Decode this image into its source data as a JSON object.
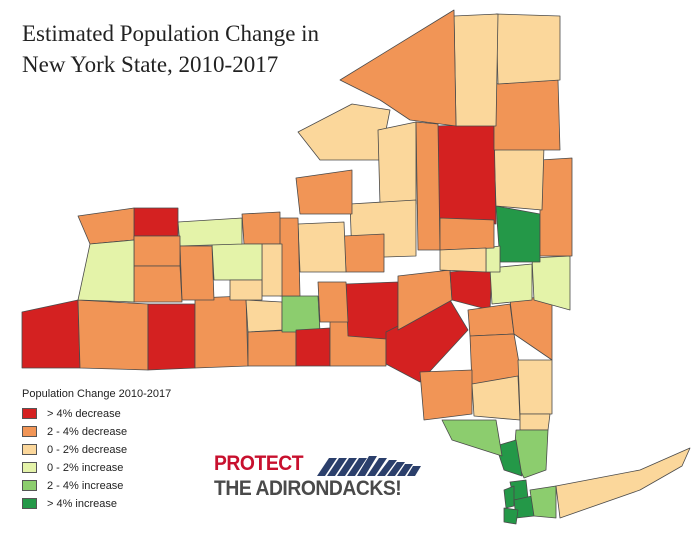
{
  "map": {
    "title_line1": "Estimated Population Change in",
    "title_line2": "New York State, 2010-2017"
  },
  "colors": {
    "decrease_gt4": "#d42121",
    "decrease_2_4": "#f19556",
    "decrease_0_2": "#fbd79b",
    "increase_0_2": "#e4f3a9",
    "increase_2_4": "#8ccd6e",
    "increase_gt4": "#249848",
    "border": "#4a4a4a",
    "water": "#ffffff"
  },
  "legend": {
    "title": "Population Change 2010-2017",
    "items": [
      {
        "label": ">  4% decrease",
        "color": "#d42121"
      },
      {
        "label": "2 - 4% decrease",
        "color": "#f19556"
      },
      {
        "label": "0 - 2% decrease",
        "color": "#fbd79b"
      },
      {
        "label": "0 - 2% increase",
        "color": "#e4f3a9"
      },
      {
        "label": "2 - 4% increase",
        "color": "#8ccd6e"
      },
      {
        "label": ">  4% increase",
        "color": "#249848"
      }
    ]
  },
  "logo": {
    "line1": "PROTECT",
    "line2": "THE ADIRONDACKS!",
    "mark": "mountains-icon"
  }
}
